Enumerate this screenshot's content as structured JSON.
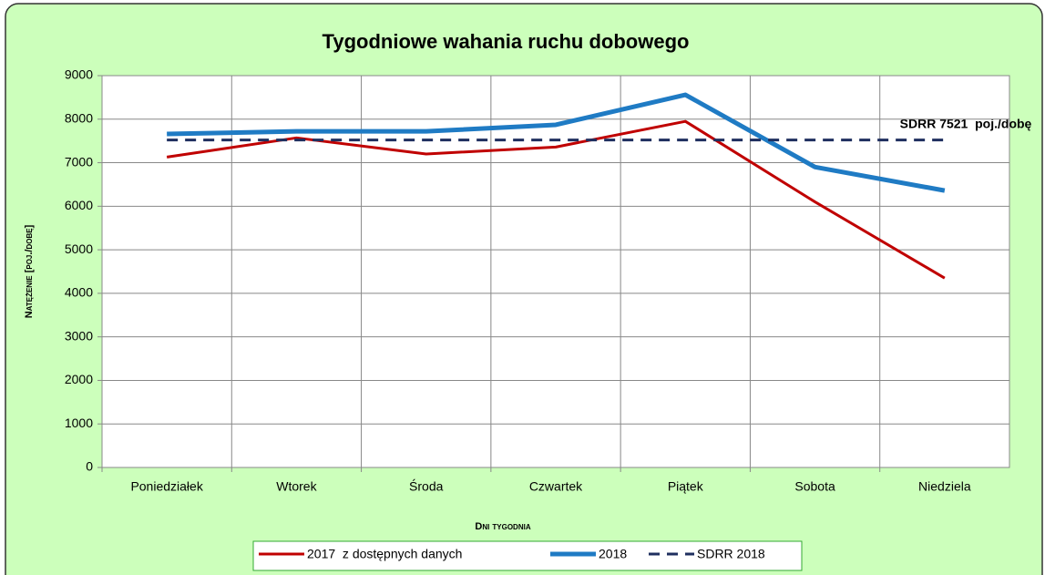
{
  "chart_data": {
    "type": "line",
    "title": "Tygodniowe wahania ruchu dobowego",
    "annotation": "SDRR 7521  poj./dobę",
    "x_label": "Dni tygodnia",
    "y_label": "Natężenie [poj./dobę]",
    "categories": [
      "Poniedziałek",
      "Wtorek",
      "Środa",
      "Czwartek",
      "Piątek",
      "Sobota",
      "Niedziela"
    ],
    "series": [
      {
        "name": "2017  z dostępnych danych",
        "color": "#c00000",
        "values": [
          7130,
          7570,
          7200,
          7360,
          7950,
          6100,
          4350
        ]
      },
      {
        "name": "2018",
        "color": "#1f7bc4",
        "values": [
          7660,
          7720,
          7720,
          7870,
          8560,
          6900,
          6360
        ]
      },
      {
        "name": "SDRR 2018",
        "color": "#1f2f5f",
        "dashed": true,
        "values": [
          7521,
          7521,
          7521,
          7521,
          7521,
          7521,
          7521
        ]
      }
    ],
    "ylim": [
      0,
      9000
    ],
    "yticks": [
      0,
      1000,
      2000,
      3000,
      4000,
      5000,
      6000,
      7000,
      8000,
      9000
    ],
    "grid": true,
    "legend": "bottom"
  }
}
